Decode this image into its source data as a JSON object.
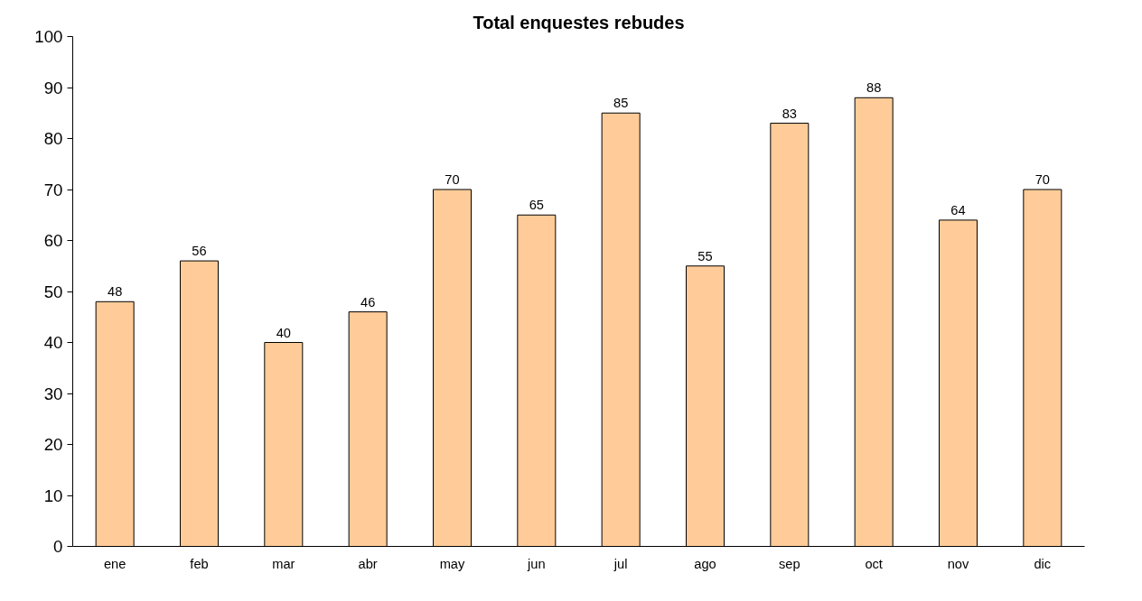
{
  "chart_data": {
    "type": "bar",
    "title": "Total enquestes rebudes",
    "categories": [
      "ene",
      "feb",
      "mar",
      "abr",
      "may",
      "jun",
      "jul",
      "ago",
      "sep",
      "oct",
      "nov",
      "dic"
    ],
    "values": [
      48,
      56,
      40,
      46,
      70,
      65,
      85,
      55,
      83,
      88,
      64,
      70
    ],
    "color": "#ffcc99",
    "ylim": [
      0,
      100
    ],
    "yticks": [
      0,
      10,
      20,
      30,
      40,
      50,
      60,
      70,
      80,
      90,
      100
    ],
    "grid": false,
    "data_labels": true
  }
}
